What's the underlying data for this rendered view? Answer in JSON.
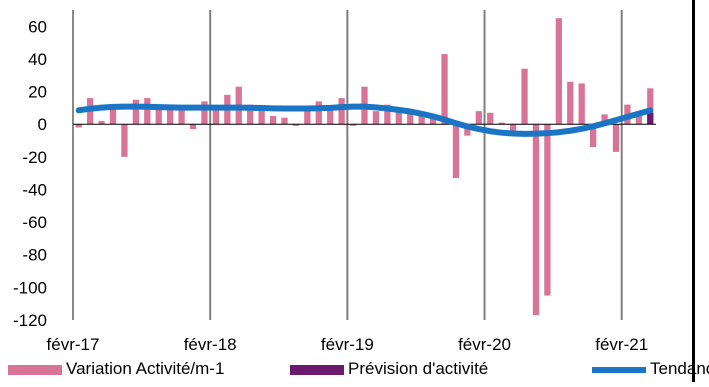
{
  "chart_data": {
    "type": "bar",
    "x_ticks": [
      "févr-17",
      "févr-18",
      "févr-19",
      "févr-20",
      "févr-21"
    ],
    "y_ticks": [
      60,
      40,
      20,
      0,
      -20,
      -40,
      -60,
      -80,
      -100,
      -120
    ],
    "ylim": [
      -120,
      70
    ],
    "grid": {
      "vertical_at_ticks": true,
      "horizontal": false
    },
    "legend_position": "bottom",
    "series": [
      {
        "name": "Variation Activité/m-1",
        "type": "bar",
        "color": "#d87497",
        "values": [
          -2,
          16,
          2,
          9,
          -20,
          15,
          16,
          10,
          9,
          9,
          -3,
          14,
          10,
          18,
          23,
          12,
          11,
          5,
          4,
          -1,
          10,
          14,
          11,
          16,
          -1,
          23,
          8,
          12,
          10,
          9,
          7,
          6,
          43,
          -33,
          -7,
          8,
          7,
          1,
          -5,
          34,
          -117,
          -105,
          65,
          26,
          25,
          -14,
          6,
          -17,
          12,
          6,
          22
        ]
      },
      {
        "name": "Prévision d'activité",
        "type": "bar",
        "color": "#6b1a6e",
        "values": [
          null,
          null,
          null,
          null,
          null,
          null,
          null,
          null,
          null,
          null,
          null,
          null,
          null,
          null,
          null,
          null,
          null,
          null,
          null,
          null,
          null,
          null,
          null,
          null,
          null,
          null,
          null,
          null,
          null,
          null,
          null,
          null,
          null,
          null,
          null,
          null,
          null,
          null,
          null,
          null,
          null,
          null,
          null,
          null,
          null,
          null,
          null,
          null,
          null,
          null,
          7
        ]
      },
      {
        "name": "Tendance",
        "type": "line",
        "color": "#1a75c4",
        "values": [
          8.5,
          9.5,
          10.2,
          10.6,
          10.8,
          10.8,
          10.7,
          10.5,
          10.3,
          10.2,
          10.2,
          10.2,
          10.2,
          10.2,
          10.2,
          10.1,
          9.9,
          9.7,
          9.6,
          9.6,
          9.6,
          9.8,
          10.0,
          10.5,
          10.8,
          10.8,
          10.3,
          9.6,
          8.8,
          7.8,
          6.4,
          4.8,
          2.8,
          0.6,
          -1.4,
          -3.0,
          -4.3,
          -5.2,
          -5.7,
          -5.9,
          -5.8,
          -5.5,
          -4.9,
          -4.0,
          -2.8,
          -1.3,
          0.5,
          2.5,
          4.5,
          6.5,
          8.5
        ]
      }
    ]
  }
}
